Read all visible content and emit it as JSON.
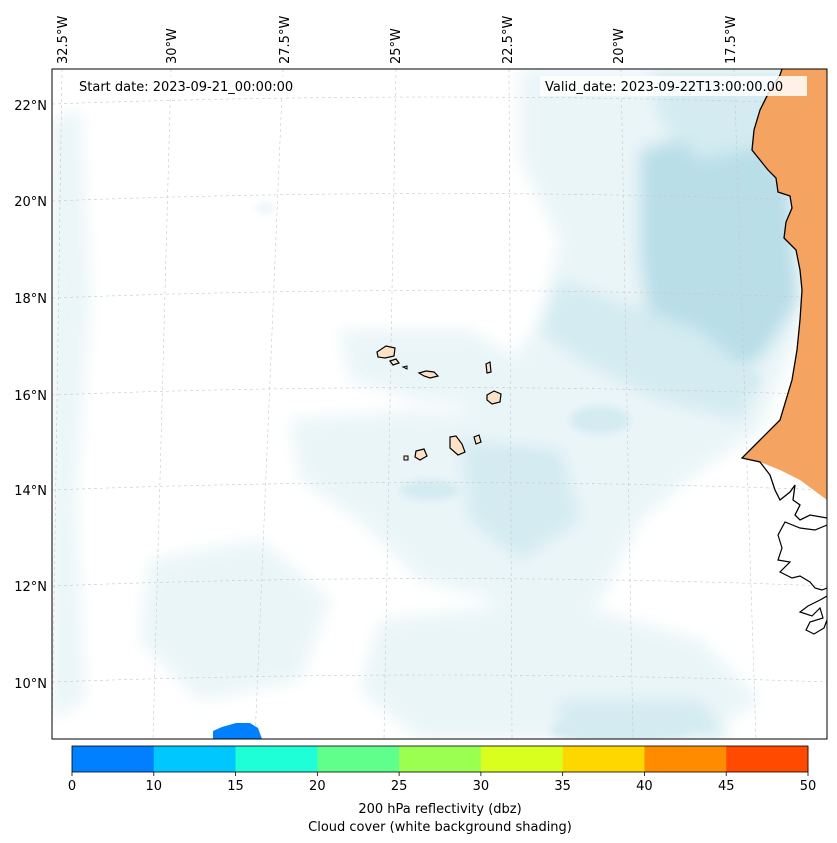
{
  "map": {
    "start_label": "Start date: 2023-09-21_00:00:00",
    "valid_label": "Valid_date: 2023-09-22T13:00:00.00",
    "lon_labels": [
      "32.5°W",
      "30°W",
      "27.5°W",
      "25°W",
      "22.5°W",
      "20°W",
      "17.5°W"
    ],
    "lat_labels": [
      "22°N",
      "20°N",
      "18°N",
      "16°N",
      "14°N",
      "12°N",
      "10°N"
    ],
    "colors": {
      "cloud_light": "#eaf5f8",
      "cloud_mid": "#d3ebf1",
      "cloud_dense": "#b9dee8",
      "land_africa": "#f4a460",
      "land_islands": "#fde2c8",
      "reflectivity_blob": "#0080ff",
      "grid": "#c8c8c8",
      "coast": "#000000"
    }
  },
  "colorbar": {
    "ticks": [
      "0",
      "10",
      "15",
      "20",
      "25",
      "30",
      "35",
      "40",
      "45",
      "50"
    ],
    "colors": [
      "#0080ff",
      "#00c8ff",
      "#1effd8",
      "#5fff8c",
      "#9bff50",
      "#d8ff1e",
      "#ffd700",
      "#ff8c00",
      "#ff4a00"
    ],
    "label_line1": "200 hPa reflectivity (dbz)",
    "label_line2": "Cloud cover (white background shading)"
  }
}
